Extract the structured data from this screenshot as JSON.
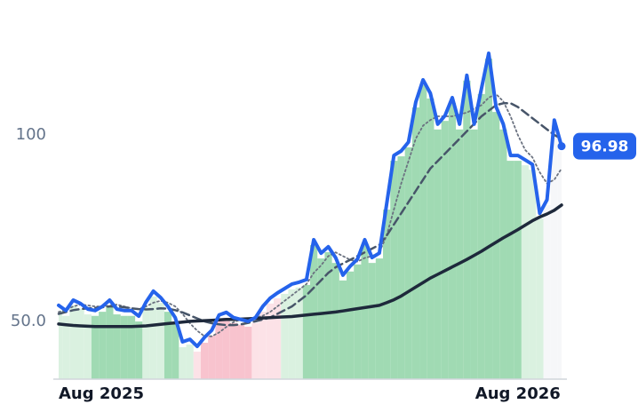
{
  "chart_data": {
    "type": "line",
    "categories": [
      "Aug 2025",
      null,
      null,
      null,
      null,
      null,
      null,
      null,
      null,
      null,
      null,
      null,
      null,
      null,
      null,
      null,
      null,
      null,
      null,
      null,
      null,
      null,
      null,
      null,
      null,
      null,
      null,
      null,
      null,
      null,
      null,
      null,
      null,
      null,
      null,
      null,
      null,
      null,
      null,
      null,
      null,
      null,
      null,
      null,
      null,
      null,
      null,
      null,
      null,
      null,
      null,
      null,
      null,
      null,
      null,
      null,
      null,
      null,
      null,
      null,
      null,
      null,
      null,
      "Aug 2026",
      null,
      null,
      null,
      null,
      null,
      null
    ],
    "ylim": [
      34.5,
      136.2
    ],
    "yticks": [
      {
        "value": 50,
        "label": "50.0"
      },
      100
    ],
    "grid": false,
    "band_colors": [
      "#d3eedb",
      "#d3eedb",
      "#d3eedb",
      "#d3eedb",
      "#d3eedb",
      "#8fd3a6",
      "#8fd3a6",
      "#8fd3a6",
      "#8fd3a6",
      "#8fd3a6",
      "#8fd3a6",
      "#8fd3a6",
      "#d3eedb",
      "#d3eedb",
      "#d3eedb",
      "#8fd3a6",
      "#8fd3a6",
      "#d3eedb",
      "#d3eedb",
      "#fcdde3",
      "#f7b9c5",
      "#f7b9c5",
      "#f7b9c5",
      "#f7b9c5",
      "#f7b9c5",
      "#f7b9c5",
      "#f7b9c5",
      "#fcdde3",
      "#fcdde3",
      "#fcdde3",
      "#fcdde3",
      "#d3eedb",
      "#d3eedb",
      "#d3eedb",
      "#8fd3a6",
      "#8fd3a6",
      "#8fd3a6",
      "#8fd3a6",
      "#8fd3a6",
      "#8fd3a6",
      "#8fd3a6",
      "#8fd3a6",
      "#8fd3a6",
      "#8fd3a6",
      "#8fd3a6",
      "#8fd3a6",
      "#8fd3a6",
      "#8fd3a6",
      "#8fd3a6",
      "#8fd3a6",
      "#8fd3a6",
      "#8fd3a6",
      "#8fd3a6",
      "#8fd3a6",
      "#8fd3a6",
      "#8fd3a6",
      "#8fd3a6",
      "#8fd3a6",
      "#8fd3a6",
      "#8fd3a6",
      "#8fd3a6",
      "#8fd3a6",
      "#8fd3a6",
      "#8fd3a6",
      "#d3eedb",
      "#d3eedb",
      "#d3eedb",
      "#f4f6f8",
      "#f4f6f8",
      "#f4f6f8"
    ],
    "series": [
      {
        "color": "#2563eb",
        "dash": "solid",
        "width": 4,
        "values": [
          54.3,
          52.9,
          55.7,
          54.8,
          53.3,
          52.9,
          54,
          55.7,
          53.3,
          52.9,
          52.9,
          51.4,
          55.2,
          58.1,
          56.4,
          54,
          51,
          44.5,
          45.2,
          43.3,
          45.7,
          47.6,
          51.7,
          52.4,
          51,
          50.5,
          50,
          51,
          54,
          56.2,
          57.6,
          58.8,
          60,
          60.5,
          61.2,
          71.9,
          68.3,
          70,
          67.1,
          62.4,
          64.8,
          66.7,
          71.9,
          67.1,
          68.3,
          81.4,
          94.5,
          95.7,
          98.1,
          108.8,
          114.8,
          111.2,
          102.9,
          105.2,
          110,
          102.9,
          116,
          102.9,
          112.4,
          121.9,
          107.6,
          102.9,
          94.5,
          94.5,
          93.3,
          92.1,
          79,
          82.6,
          104,
          96.98
        ]
      },
      {
        "color": "#1e293b",
        "dash": "solid",
        "width": 3.5,
        "values": [
          49.3,
          49.1,
          48.9,
          48.8,
          48.7,
          48.6,
          48.6,
          48.6,
          48.6,
          48.6,
          48.6,
          48.7,
          48.8,
          49,
          49.2,
          49.4,
          49.6,
          49.8,
          50,
          50.1,
          50.2,
          50.3,
          50.4,
          50.5,
          50.5,
          50.6,
          50.7,
          50.8,
          50.9,
          51,
          51.1,
          51.2,
          51.3,
          51.5,
          51.7,
          51.9,
          52.1,
          52.3,
          52.5,
          52.8,
          53.1,
          53.4,
          53.7,
          54,
          54.3,
          55,
          55.8,
          56.8,
          58,
          59.2,
          60.4,
          61.6,
          62.6,
          63.6,
          64.6,
          65.6,
          66.6,
          67.7,
          68.8,
          70,
          71.2,
          72.4,
          73.5,
          74.6,
          75.8,
          77,
          78,
          78.8,
          79.8,
          81.2
        ]
      },
      {
        "color": "#475569",
        "dash": "dashed",
        "width": 2.5,
        "values": [
          52,
          52.5,
          53,
          53.3,
          53.5,
          53.6,
          53.8,
          54,
          54,
          53.8,
          53.5,
          53.3,
          53.2,
          53.3,
          53.5,
          53.4,
          53,
          52.4,
          51.6,
          50.8,
          50,
          49.5,
          49.2,
          49,
          49,
          49.2,
          49.6,
          50,
          50.5,
          51,
          52,
          53,
          54,
          55.5,
          57,
          59,
          61,
          63,
          64.5,
          65.5,
          66.5,
          67.5,
          68.5,
          69.5,
          70.5,
          73,
          76,
          79,
          82,
          85,
          88,
          91,
          93,
          95,
          97,
          99,
          101,
          103,
          105,
          106.5,
          108,
          108.5,
          108.5,
          107.5,
          106,
          104.5,
          103,
          101.5,
          100,
          99
        ]
      },
      {
        "color": "#6b7280",
        "dash": "dotted",
        "width": 1.8,
        "values": [
          52.5,
          53,
          54,
          54.5,
          54.3,
          54,
          54,
          54.2,
          54.5,
          54,
          53.5,
          53.3,
          54,
          55,
          55.5,
          55,
          54,
          52,
          49.5,
          47.5,
          46,
          46,
          47,
          48.5,
          49.8,
          50.5,
          50.8,
          51,
          51.5,
          52.5,
          54,
          55.5,
          57,
          58.5,
          60,
          63,
          65,
          67.5,
          68.5,
          67.5,
          66.5,
          66,
          67,
          67.5,
          68.5,
          73,
          80,
          87,
          93,
          99,
          102.5,
          104,
          105,
          105,
          105,
          105.5,
          106,
          107,
          108,
          110,
          111,
          109,
          105,
          100,
          96,
          94,
          90,
          87,
          88,
          91
        ]
      }
    ]
  }
}
